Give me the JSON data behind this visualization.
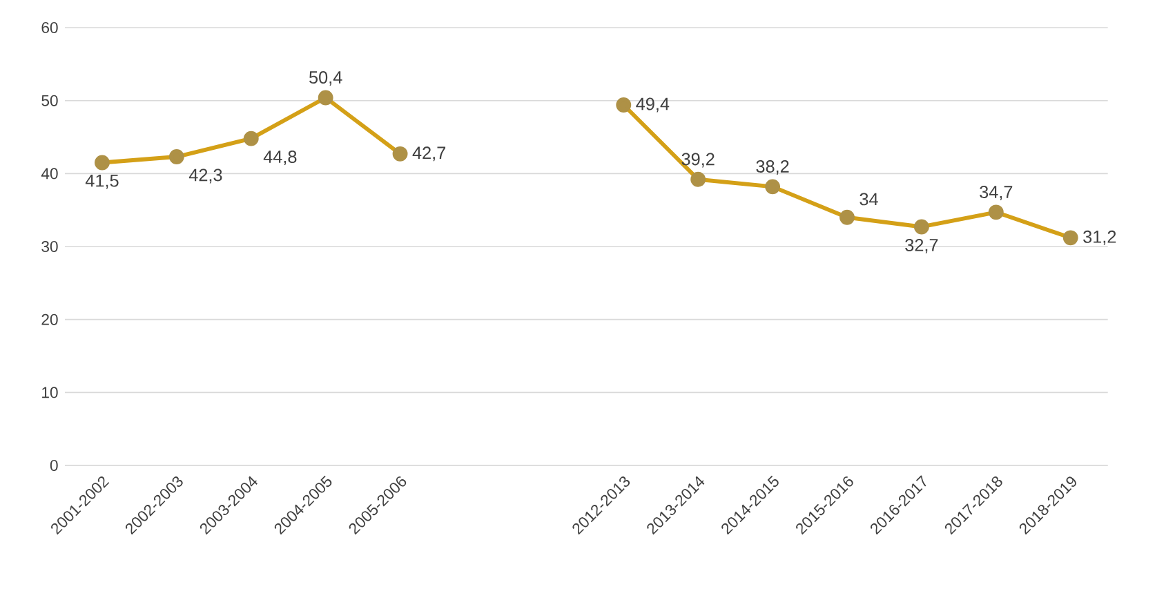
{
  "chart_data": {
    "type": "line",
    "categories": [
      "2001-2002",
      "2002-2003",
      "2003-2004",
      "2004-2005",
      "2005-2006",
      null,
      null,
      "2012-2013",
      "2013-2014",
      "2014-2015",
      "2015-2016",
      "2016-2017",
      "2017-2018",
      "2018-2019"
    ],
    "series": [
      {
        "color": "#d4a017",
        "values": [
          41.5,
          42.3,
          44.8,
          50.4,
          42.7,
          null,
          null,
          49.4,
          39.2,
          38.2,
          34,
          32.7,
          34.7,
          31.2
        ],
        "value_labels": [
          "41,5",
          "42,3",
          "44,8",
          "50,4",
          "42,7",
          null,
          null,
          "49,4",
          "39,2",
          "38,2",
          "34",
          "32,7",
          "34,7",
          "31,2"
        ]
      }
    ],
    "ylim": [
      0,
      60
    ],
    "yticks": [
      0,
      10,
      20,
      30,
      40,
      50,
      60
    ],
    "grid": "y",
    "marker": "circle",
    "line_style": "solid"
  }
}
